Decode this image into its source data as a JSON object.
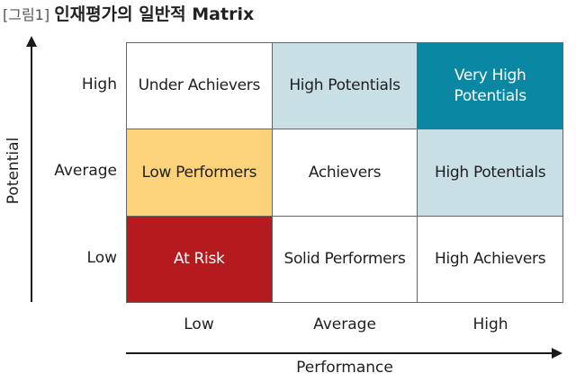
{
  "title": {
    "figure_tag": "[그림1]",
    "text": "인재평가의 일반적 Matrix"
  },
  "axes": {
    "y_label": "Potential",
    "x_label": "Performance",
    "y_levels": [
      "High",
      "Average",
      "Low"
    ],
    "x_levels": [
      "Low",
      "Average",
      "High"
    ]
  },
  "matrix": {
    "rows": [
      [
        {
          "label": "Under Achievers",
          "color": "#ffffff"
        },
        {
          "label": "High Potentials",
          "color": "#c9dfe6"
        },
        {
          "label": "Very High Potentials",
          "color": "#0a87a2"
        }
      ],
      [
        {
          "label": "Low Performers",
          "color": "#fcd27a"
        },
        {
          "label": "Achievers",
          "color": "#ffffff"
        },
        {
          "label": "High Potentials",
          "color": "#c9dfe6"
        }
      ],
      [
        {
          "label": "At Risk",
          "color": "#b31b1f"
        },
        {
          "label": "Solid Performers",
          "color": "#ffffff"
        },
        {
          "label": "High Achievers",
          "color": "#ffffff"
        }
      ]
    ]
  }
}
